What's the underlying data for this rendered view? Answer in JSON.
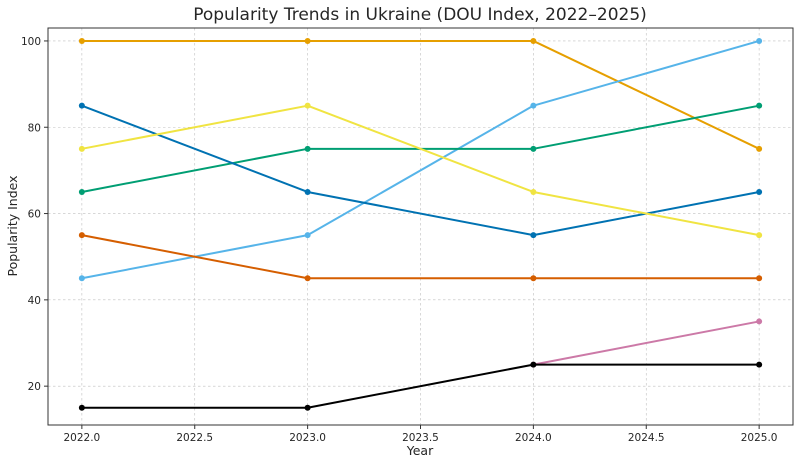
{
  "chart_data": {
    "type": "line",
    "title": "Popularity Trends in Ukraine (DOU Index, 2022–2025)",
    "xlabel": "Year",
    "ylabel": "Popularity Index",
    "xlim": [
      2021.85,
      2025.15
    ],
    "ylim": [
      11,
      103
    ],
    "x_ticks": [
      2022.0,
      2022.5,
      2023.0,
      2023.5,
      2024.0,
      2024.5,
      2025.0
    ],
    "x_tick_labels": [
      "2022.0",
      "2022.5",
      "2023.0",
      "2023.5",
      "2024.0",
      "2024.5",
      "2025.0"
    ],
    "y_ticks": [
      20,
      40,
      60,
      80,
      100
    ],
    "y_tick_labels": [
      "20",
      "40",
      "60",
      "80",
      "100"
    ],
    "grid": true,
    "legend": "none",
    "x": [
      2022,
      2023,
      2024,
      2025
    ],
    "series": [
      {
        "color": "#e69f00",
        "values": [
          100,
          100,
          100,
          75
        ]
      },
      {
        "color": "#56b4e9",
        "values": [
          45,
          55,
          85,
          100
        ]
      },
      {
        "color": "#009e73",
        "values": [
          65,
          75,
          75,
          85
        ]
      },
      {
        "color": "#0072b2",
        "values": [
          85,
          65,
          55,
          65
        ]
      },
      {
        "color": "#f0e442",
        "values": [
          75,
          85,
          65,
          55
        ]
      },
      {
        "color": "#d55e00",
        "values": [
          55,
          45,
          45,
          45
        ]
      },
      {
        "color": "#cc79a7",
        "values": [
          null,
          null,
          25,
          35
        ]
      },
      {
        "color": "#000000",
        "values": [
          15,
          15,
          25,
          25
        ]
      }
    ]
  }
}
